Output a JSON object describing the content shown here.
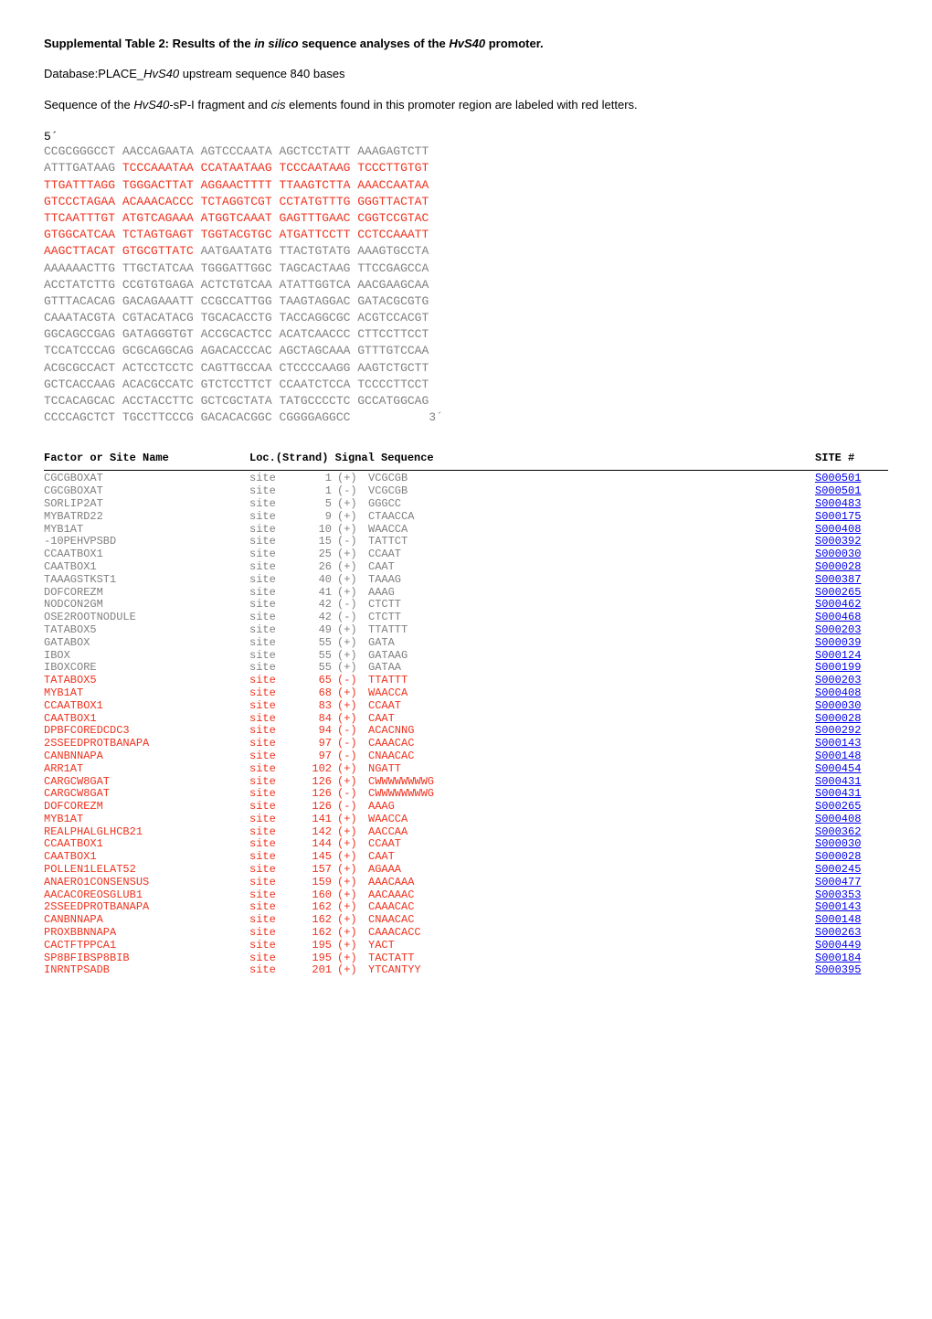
{
  "title": {
    "prefix": "Supplemental Table 2: Results of the ",
    "insilico": "in silico",
    "mid": " sequence analyses of the ",
    "gene": "HvS40",
    "suffix": " promoter."
  },
  "subtitle": {
    "prefix": "Database:PLACE_",
    "gene": "HvS40",
    "suffix": " upstream sequence 840 bases"
  },
  "desc": {
    "prefix": "Sequence of the ",
    "gene": "HvS40",
    "mid": "-sP-I fragment and ",
    "cis": "cis",
    "suffix": " elements found in this promoter region are labeled with red letters."
  },
  "five_prime": "5´",
  "three_prime": " 3´",
  "sequence": [
    [
      {
        "t": "CCGCGGGCCT AACCAGAATA AGTCCCAATA AGCTCCTATT AAAGAGTCTT",
        "c": "grey"
      }
    ],
    [
      {
        "t": "ATTTGATAAG ",
        "c": "grey"
      },
      {
        "t": "TCCCAAATAA CCATAATAAG TCCCAATAAG TCCCTTGTGT",
        "c": "red"
      }
    ],
    [
      {
        "t": "TTGATTTAGG TGGGACTTAT AGGAACTTTT TTAAGTCTTA AAACCAATAA",
        "c": "red"
      }
    ],
    [
      {
        "t": "GTCCCTAGAA ACAAACACCC TCTAGGTCGT CCTATGTTTG GGGTTACTAT",
        "c": "red"
      }
    ],
    [
      {
        "t": "TTCAATTTGT ATGTCAGAAA ATGGTCAAAT GAGTTTGAAC CGGTCCGTAC",
        "c": "red"
      }
    ],
    [
      {
        "t": "GTGGCATCAA TCTAGTGAGT TGGTACGTGC ATGATTCCTT CCTCCAAATT",
        "c": "red"
      }
    ],
    [
      {
        "t": "AAGCTTACAT GTGCGTTATC",
        "c": "red"
      },
      {
        "t": " AATGAATATG TTACTGTATG AAAGTGCCTA",
        "c": "grey"
      }
    ],
    [
      {
        "t": "AAAAAACTTG TTGCTATCAA TGGGATTGGC TAGCACTAAG TTCCGAGCCA",
        "c": "grey"
      }
    ],
    [
      {
        "t": "ACCTATCTTG CCGTGTGAGA ACTCTGTCAA ATATTGGTCA AACGAAGCAA",
        "c": "grey"
      }
    ],
    [
      {
        "t": "GTTTACACAG GACAGAAATT CCGCCATTGG TAAGTAGGAC GATACGCGTG",
        "c": "grey"
      }
    ],
    [
      {
        "t": "CAAATACGTA CGTACATACG TGCACACCTG TACCAGGCGC ACGTCCACGT",
        "c": "grey"
      }
    ],
    [
      {
        "t": "GGCAGCCGAG GATAGGGTGT ACCGCACTCC ACATCAACCC CTTCCTTCCT",
        "c": "grey"
      }
    ],
    [
      {
        "t": "TCCATCCCAG GCGCAGGCAG AGACACCCAC AGCTAGCAAA GTTTGTCCAA",
        "c": "grey"
      }
    ],
    [
      {
        "t": "ACGCGCCACT ACTCCTCCTC CAGTTGCCAA CTCCCCAAGG AAGTCTGCTT",
        "c": "grey"
      }
    ],
    [
      {
        "t": "GCTCACCAAG ACACGCCATC GTCTCCTTCT CCAATCTCCA TCCCCTTCCT",
        "c": "grey"
      }
    ],
    [
      {
        "t": "TCCACAGCAC ACCTACCTTC GCTCGCTATA TATGCCCCTC GCCATGGCAG",
        "c": "grey"
      }
    ],
    [
      {
        "t": "CCCCAGCTCT TGCCTTCCCG GACACACGGC CGGGGAGGCC",
        "c": "grey"
      }
    ]
  ],
  "table_header": {
    "factor": "Factor or Site Name",
    "loc": "Loc.(Strand) Signal Sequence",
    "site": "SITE #"
  },
  "rows": [
    {
      "factor": "CGCGBOXAT",
      "loc": "site",
      "pos": "1",
      "strand": "(+)",
      "signal": "VCGCGB",
      "site": "S000501",
      "color": "grey"
    },
    {
      "factor": "CGCGBOXAT",
      "loc": "site",
      "pos": "1",
      "strand": "(-)",
      "signal": "VCGCGB",
      "site": "S000501",
      "color": "grey"
    },
    {
      "factor": "SORLIP2AT",
      "loc": "site",
      "pos": "5",
      "strand": "(+)",
      "signal": "GGGCC",
      "site": "S000483",
      "color": "grey"
    },
    {
      "factor": "MYBATRD22",
      "loc": "site",
      "pos": "9",
      "strand": "(+)",
      "signal": "CTAACCA",
      "site": "S000175",
      "color": "grey"
    },
    {
      "factor": "MYB1AT",
      "loc": "site",
      "pos": "10",
      "strand": "(+)",
      "signal": "WAACCA",
      "site": "S000408",
      "color": "grey"
    },
    {
      "factor": "-10PEHVPSBD",
      "loc": "site",
      "pos": "15",
      "strand": "(-)",
      "signal": "TATTCT",
      "site": "S000392",
      "color": "grey"
    },
    {
      "factor": "CCAATBOX1",
      "loc": "site",
      "pos": "25",
      "strand": "(+)",
      "signal": "CCAAT",
      "site": "S000030",
      "color": "grey"
    },
    {
      "factor": "CAATBOX1",
      "loc": "site",
      "pos": "26",
      "strand": "(+)",
      "signal": "CAAT",
      "site": "S000028",
      "color": "grey"
    },
    {
      "factor": "TAAAGSTKST1",
      "loc": "site",
      "pos": "40",
      "strand": "(+)",
      "signal": "TAAAG",
      "site": "S000387",
      "color": "grey"
    },
    {
      "factor": "DOFCOREZM",
      "loc": "site",
      "pos": "41",
      "strand": "(+)",
      "signal": "AAAG",
      "site": "S000265",
      "color": "grey"
    },
    {
      "factor": "NODCON2GM",
      "loc": "site",
      "pos": "42",
      "strand": "(-)",
      "signal": "CTCTT",
      "site": "S000462",
      "color": "grey"
    },
    {
      "factor": "OSE2ROOTNODULE",
      "loc": "site",
      "pos": "42",
      "strand": "(-)",
      "signal": "CTCTT",
      "site": "S000468",
      "color": "grey"
    },
    {
      "factor": "TATABOX5",
      "loc": "site",
      "pos": "49",
      "strand": "(+)",
      "signal": "TTATTT",
      "site": "S000203",
      "color": "grey"
    },
    {
      "factor": "GATABOX",
      "loc": "site",
      "pos": "55",
      "strand": "(+)",
      "signal": "GATA",
      "site": "S000039",
      "color": "grey"
    },
    {
      "factor": "IBOX",
      "loc": "site",
      "pos": "55",
      "strand": "(+)",
      "signal": "GATAAG",
      "site": "S000124",
      "color": "grey"
    },
    {
      "factor": "IBOXCORE",
      "loc": "site",
      "pos": "55",
      "strand": "(+)",
      "signal": "GATAA",
      "site": "S000199",
      "color": "grey"
    },
    {
      "factor": "TATABOX5",
      "loc": "site",
      "pos": "65",
      "strand": "(-)",
      "signal": "TTATTT",
      "site": "S000203",
      "color": "red"
    },
    {
      "factor": "MYB1AT",
      "loc": "site",
      "pos": "68",
      "strand": "(+)",
      "signal": "WAACCA",
      "site": "S000408",
      "color": "red"
    },
    {
      "factor": "CCAATBOX1",
      "loc": "site",
      "pos": "83",
      "strand": "(+)",
      "signal": "CCAAT",
      "site": "S000030",
      "color": "red"
    },
    {
      "factor": "CAATBOX1",
      "loc": "site",
      "pos": "84",
      "strand": "(+)",
      "signal": "CAAT",
      "site": "S000028",
      "color": "red"
    },
    {
      "factor": "DPBFCOREDCDC3",
      "loc": "site",
      "pos": "94",
      "strand": "(-)",
      "signal": "ACACNNG",
      "site": "S000292",
      "color": "red"
    },
    {
      "factor": "2SSEEDPROTBANAPA",
      "loc": "site",
      "pos": "97",
      "strand": "(-)",
      "signal": "CAAACAC",
      "site": "S000143",
      "color": "red"
    },
    {
      "factor": "CANBNNAPA",
      "loc": "site",
      "pos": "97",
      "strand": "(-)",
      "signal": "CNAACAC",
      "site": "S000148",
      "color": "red"
    },
    {
      "factor": "ARR1AT",
      "loc": "site",
      "pos": "102",
      "strand": "(+)",
      "signal": "NGATT",
      "site": "S000454",
      "color": "red"
    },
    {
      "factor": "CARGCW8GAT",
      "loc": "site",
      "pos": "126",
      "strand": "(+)",
      "signal": "CWWWWWWWWG",
      "site": "S000431",
      "color": "red"
    },
    {
      "factor": "CARGCW8GAT",
      "loc": "site",
      "pos": "126",
      "strand": "(-)",
      "signal": "CWWWWWWWWG",
      "site": "S000431",
      "color": "red"
    },
    {
      "factor": "DOFCOREZM",
      "loc": "site",
      "pos": "126",
      "strand": "(-)",
      "signal": "AAAG",
      "site": "S000265",
      "color": "red"
    },
    {
      "factor": "MYB1AT",
      "loc": "site",
      "pos": "141",
      "strand": "(+)",
      "signal": "WAACCA",
      "site": "S000408",
      "color": "red"
    },
    {
      "factor": "REALPHALGLHCB21",
      "loc": "site",
      "pos": "142",
      "strand": "(+)",
      "signal": "AACCAA",
      "site": "S000362",
      "color": "red"
    },
    {
      "factor": "CCAATBOX1",
      "loc": "site",
      "pos": "144",
      "strand": "(+)",
      "signal": "CCAAT",
      "site": "S000030",
      "color": "red"
    },
    {
      "factor": "CAATBOX1",
      "loc": "site",
      "pos": "145",
      "strand": "(+)",
      "signal": "CAAT",
      "site": "S000028",
      "color": "red"
    },
    {
      "factor": "POLLEN1LELAT52",
      "loc": "site",
      "pos": "157",
      "strand": "(+)",
      "signal": "AGAAA",
      "site": "S000245",
      "color": "red"
    },
    {
      "factor": "ANAERO1CONSENSUS",
      "loc": "site",
      "pos": "159",
      "strand": "(+)",
      "signal": "AAACAAA",
      "site": "S000477",
      "color": "red"
    },
    {
      "factor": "AACACOREOSGLUB1",
      "loc": "site",
      "pos": "160",
      "strand": "(+)",
      "signal": "AACAAAC",
      "site": "S000353",
      "color": "red"
    },
    {
      "factor": "2SSEEDPROTBANAPA",
      "loc": "site",
      "pos": "162",
      "strand": "(+)",
      "signal": "CAAACAC",
      "site": "S000143",
      "color": "red"
    },
    {
      "factor": "CANBNNAPA",
      "loc": "site",
      "pos": "162",
      "strand": "(+)",
      "signal": "CNAACAC",
      "site": "S000148",
      "color": "red"
    },
    {
      "factor": "PROXBBNNAPA",
      "loc": "site",
      "pos": "162",
      "strand": "(+)",
      "signal": "CAAACACC",
      "site": "S000263",
      "color": "red"
    },
    {
      "factor": "CACTFTPPCA1",
      "loc": "site",
      "pos": "195",
      "strand": "(+)",
      "signal": "YACT",
      "site": "S000449",
      "color": "red"
    },
    {
      "factor": "SP8BFIBSP8BIB",
      "loc": "site",
      "pos": "195",
      "strand": "(+)",
      "signal": "TACTATT",
      "site": "S000184",
      "color": "red"
    },
    {
      "factor": "INRNTPSADB",
      "loc": "site",
      "pos": "201",
      "strand": "(+)",
      "signal": "YTCANTYY",
      "site": "S000395",
      "color": "red"
    }
  ],
  "colors": {
    "red": "#ef321e",
    "grey": "#808080",
    "blue_link": "#0000ee",
    "background": "#ffffff",
    "text": "#000000"
  }
}
